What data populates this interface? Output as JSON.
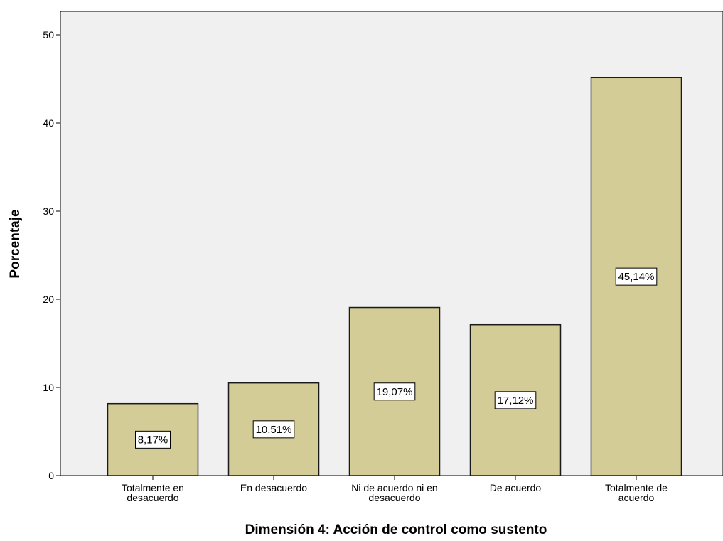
{
  "chart_data": {
    "type": "bar",
    "title": "",
    "xlabel": "Dimensión 4: Acción de control como sustento",
    "ylabel": "Porcentaje",
    "ylim": [
      0,
      52
    ],
    "yticks": [
      0,
      10,
      20,
      30,
      40,
      50
    ],
    "categories": [
      [
        "Totalmente en",
        "desacuerdo"
      ],
      [
        "En desacuerdo"
      ],
      [
        "Ni de acuerdo ni en",
        "desacuerdo"
      ],
      [
        "De acuerdo"
      ],
      [
        "Totalmente de",
        "acuerdo"
      ]
    ],
    "values": [
      8.17,
      10.51,
      19.07,
      17.12,
      45.14
    ],
    "data_labels": [
      "8,17%",
      "10,51%",
      "19,07%",
      "17,12%",
      "45,14%"
    ],
    "grid": false,
    "colors": {
      "bar_fill": "#d4cc96",
      "bar_stroke": "#1a1a1a",
      "plot_background": "#f0f0f0",
      "axis": "#000000"
    }
  }
}
